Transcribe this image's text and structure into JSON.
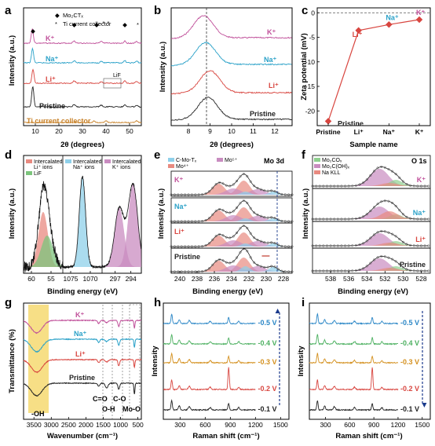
{
  "panels": {
    "a": {
      "label": "a",
      "ylabel": "Intensity (a.u.)",
      "xlabel": "2θ (degrees)",
      "legend": {
        "mxene": "Mo₂CTₓ",
        "ti": "Ti current collector"
      },
      "lif_label": "LiF",
      "series_labels": [
        "K⁺",
        "Na⁺",
        "Li⁺",
        "Pristine",
        "Ti current collector"
      ]
    },
    "b": {
      "label": "b",
      "ylabel": "Intensity (a.u.)",
      "xlabel": "2θ (degrees)",
      "series_labels": [
        "K⁺",
        "Na⁺",
        "Li⁺",
        "Pristine"
      ]
    },
    "c": {
      "label": "c",
      "ylabel": "Zeta potential (mV)",
      "xlabel": "Sample name",
      "point_labels": [
        "Pristine",
        "Li⁺",
        "Na⁺",
        "K⁺"
      ]
    },
    "d": {
      "label": "d",
      "ylabel": "Intensity (a.u.)",
      "xlabel": "Binding energy (eV)",
      "legends": [
        [
          "Intercalated",
          "Li⁺ ions",
          "LiF"
        ],
        [
          "Intercalated",
          "Na⁺ ions"
        ],
        [
          "Intercalated",
          "K⁺ ions"
        ]
      ]
    },
    "e": {
      "label": "e",
      "ylabel": "Intensity (a.u.)",
      "xlabel": "Binding energy (eV)",
      "title": "Mo 3d",
      "legend": [
        "C-Mo-Tₓ",
        "Mo⁵⁺",
        "Mo⁴⁺"
      ],
      "series_labels": [
        "K⁺",
        "Na⁺",
        "Li⁺",
        "Pristine"
      ]
    },
    "f": {
      "label": "f",
      "ylabel": "Intensity (a.u.)",
      "xlabel": "Binding energy (eV)",
      "title": "O 1s",
      "legend": [
        "Mo₂COₓ",
        "Mo₂C(OH)ₓ",
        "Na KLL"
      ],
      "series_labels": [
        "K⁺",
        "Na⁺",
        "Li⁺",
        "Pristine"
      ]
    },
    "g": {
      "label": "g",
      "ylabel": "Transmittance (%)",
      "xlabel": "Wavenumber (cm⁻¹)",
      "series_labels": [
        "K⁺",
        "Na⁺",
        "Li⁺",
        "Pristine"
      ],
      "bands": [
        "-OH",
        "C=O",
        "O-H",
        "C-O",
        "Mo-O"
      ]
    },
    "h": {
      "label": "h",
      "ylabel": "Intensity",
      "xlabel": "Raman shift (cm⁻¹)",
      "voltages": [
        "-0.5 V",
        "-0.4 V",
        "-0.3 V",
        "-0.2 V",
        "-0.1 V"
      ]
    },
    "i": {
      "label": "i",
      "ylabel": "Intensity",
      "xlabel": "Raman shift (cm⁻¹)",
      "voltages": [
        "-0.5 V",
        "-0.4 V",
        "-0.3 V",
        "-0.2 V",
        "-0.1 V"
      ]
    }
  },
  "colors": {
    "K": "#c0509a",
    "Na": "#2aa1c8",
    "Li": "#d8453f",
    "Pristine": "#222222",
    "Ti": "#c8822a",
    "zeta": "#d8453f",
    "raman": [
      "#2a86c6",
      "#4cb060",
      "#d4901e",
      "#d8453f",
      "#222222"
    ]
  },
  "chart_data": [
    {
      "panel": "a",
      "type": "line",
      "xlim": [
        5,
        55
      ],
      "xticks": [
        10,
        20,
        30,
        40,
        50
      ],
      "series": [
        {
          "name": "K⁺",
          "peaks": [
            8.7
          ]
        },
        {
          "name": "Na⁺",
          "peaks": [
            8.8
          ]
        },
        {
          "name": "Li⁺",
          "peaks": [
            9.0
          ]
        },
        {
          "name": "Pristine",
          "peaks": [
            8.9
          ]
        },
        {
          "name": "Ti current collector",
          "peaks": []
        }
      ]
    },
    {
      "panel": "b",
      "type": "line",
      "xlim": [
        7.2,
        12.8
      ],
      "xticks": [
        8,
        9,
        10,
        11,
        12
      ],
      "dashed_line_x": 8.9,
      "series": [
        {
          "name": "K⁺",
          "peak": 8.7
        },
        {
          "name": "Na⁺",
          "peak": 8.8
        },
        {
          "name": "Li⁺",
          "peak": 9.0
        },
        {
          "name": "Pristine",
          "peak": 8.9
        }
      ]
    },
    {
      "panel": "c",
      "type": "line",
      "categories": [
        "Pristine",
        "Li⁺",
        "Na⁺",
        "K⁺"
      ],
      "values": [
        -22.1,
        -3.6,
        -2.4,
        -1.4
      ],
      "ylim": [
        -23,
        1
      ],
      "yticks": [
        0,
        -5,
        -10,
        -15,
        -20
      ]
    },
    {
      "panel": "d",
      "type": "line",
      "subpanels": [
        {
          "xticks": [
            60,
            55
          ],
          "xlim": [
            62,
            52
          ]
        },
        {
          "xticks": [
            1075,
            1070
          ],
          "xlim": [
            1077,
            1067
          ]
        },
        {
          "xticks": [
            297,
            294
          ],
          "xlim": [
            299.5,
            292
          ]
        }
      ]
    },
    {
      "panel": "e",
      "type": "line",
      "xlim": [
        241,
        227
      ],
      "xticks": [
        240,
        238,
        236,
        234,
        232,
        230,
        228
      ],
      "dashed_line_x": 229.1
    },
    {
      "panel": "f",
      "type": "line",
      "xlim": [
        540,
        527
      ],
      "xticks": [
        538,
        536,
        534,
        532,
        530,
        528
      ]
    },
    {
      "panel": "g",
      "type": "line",
      "xlim": [
        3800,
        400
      ],
      "xticks": [
        3500,
        3000,
        2500,
        2000,
        1500,
        1000,
        500
      ]
    },
    {
      "panel": "h",
      "type": "line",
      "xlim": [
        100,
        1600
      ],
      "xticks": [
        300,
        600,
        900,
        1200,
        1500
      ]
    },
    {
      "panel": "i",
      "type": "line",
      "xlim": [
        100,
        1600
      ],
      "xticks": [
        300,
        600,
        900,
        1200,
        1500
      ]
    }
  ]
}
